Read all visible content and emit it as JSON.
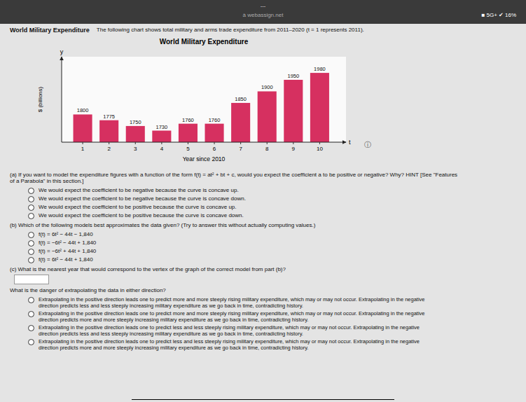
{
  "chart_data": {
    "type": "bar",
    "title": "World Military Expenditure",
    "xlabel": "Year since 2010",
    "ylabel": "$ (billions)",
    "x": [
      1,
      2,
      3,
      4,
      5,
      6,
      7,
      8,
      9,
      10
    ],
    "values": [
      1800,
      1775,
      1750,
      1730,
      1760,
      1760,
      1850,
      1900,
      1950,
      1980
    ],
    "color": "#d63060",
    "xlim": [
      0.2,
      11.0
    ],
    "xticks": [
      1,
      2,
      3,
      4,
      5,
      6,
      7,
      8,
      9,
      10
    ],
    "ylim": [
      1680,
      2050
    ],
    "yticks": [],
    "tick_labels": "x",
    "data_labels": true,
    "grid": false,
    "annotations": [
      "y",
      "t"
    ]
  },
  "page": {
    "menu": "...",
    "browser_bar": "à webassign.net",
    "signal_text": "■ 5G+ ✔ 16%",
    "header_title": "World Military Expenditure",
    "header_text": "The following chart shows total military and arms trade expenditure from 2011–2020 (t = 1 represents 2011).",
    "info_icon": "ⓘ",
    "part_a_text": "(a)  If you want to model the expenditure figures with a function of the form f(t) = at² + bt + c, would you expect the coefficient a to be positive or negative? Why? HINT [See \"Features\nof a Parabola\" in this section.]",
    "part_a_options": [
      "We would expect the coefficient to be negative because the curve is concave up.",
      "We would expect the coefficient to be negative because the curve is concave down.",
      "We would expect the coefficient to be positive because the curve is concave up.",
      "We would expect the coefficient to be positive because the curve is concave down."
    ],
    "part_b_text": "(b)  Which of the following models best approximates the data given? (Try to answer this without actually computing values.)",
    "part_b_options": [
      "f(t) = 6t² − 44t − 1,840",
      "f(t) = −6t² − 44t + 1,840",
      "f(t) = −6t² + 44t + 1,840",
      "f(t) = 6t² − 44t + 1,840"
    ],
    "part_c_text": "(c)  What is the nearest year that would correspond to the vertex of the graph of the correct model from part (b)?",
    "part_c_danger_text": "What is the danger of extrapolating the data in either direction?",
    "part_c_options": [
      "Extrapolating in the positive direction leads one to predict more and more steeply rising military expenditure, which may or may not occur. Extrapolating in the negative\ndirection predicts less and less steeply increasing military expenditure as we go back in time, contradicting history.",
      "Extrapolating in the positive direction leads one to predict more and more steeply rising military expenditure, which may or may not occur. Extrapolating in the negative\ndirection predicts more and more steeply increasing military expenditure as we go back in time, contradicting history.",
      "Extrapolating in the positive direction leads one to predict less and less steeply rising military expenditure, which may or may not occur. Extrapolating in the negative\ndirection predicts less and less steeply increasing military expenditure as we go back in time, contradicting history.",
      "Extrapolating in the positive direction leads one to predict less and less steeply rising military expenditure, which may or may not occur. Extrapolating in the negative\ndirection predicts more and more steeply increasing military expenditure as we go back in time, contradicting history."
    ]
  }
}
